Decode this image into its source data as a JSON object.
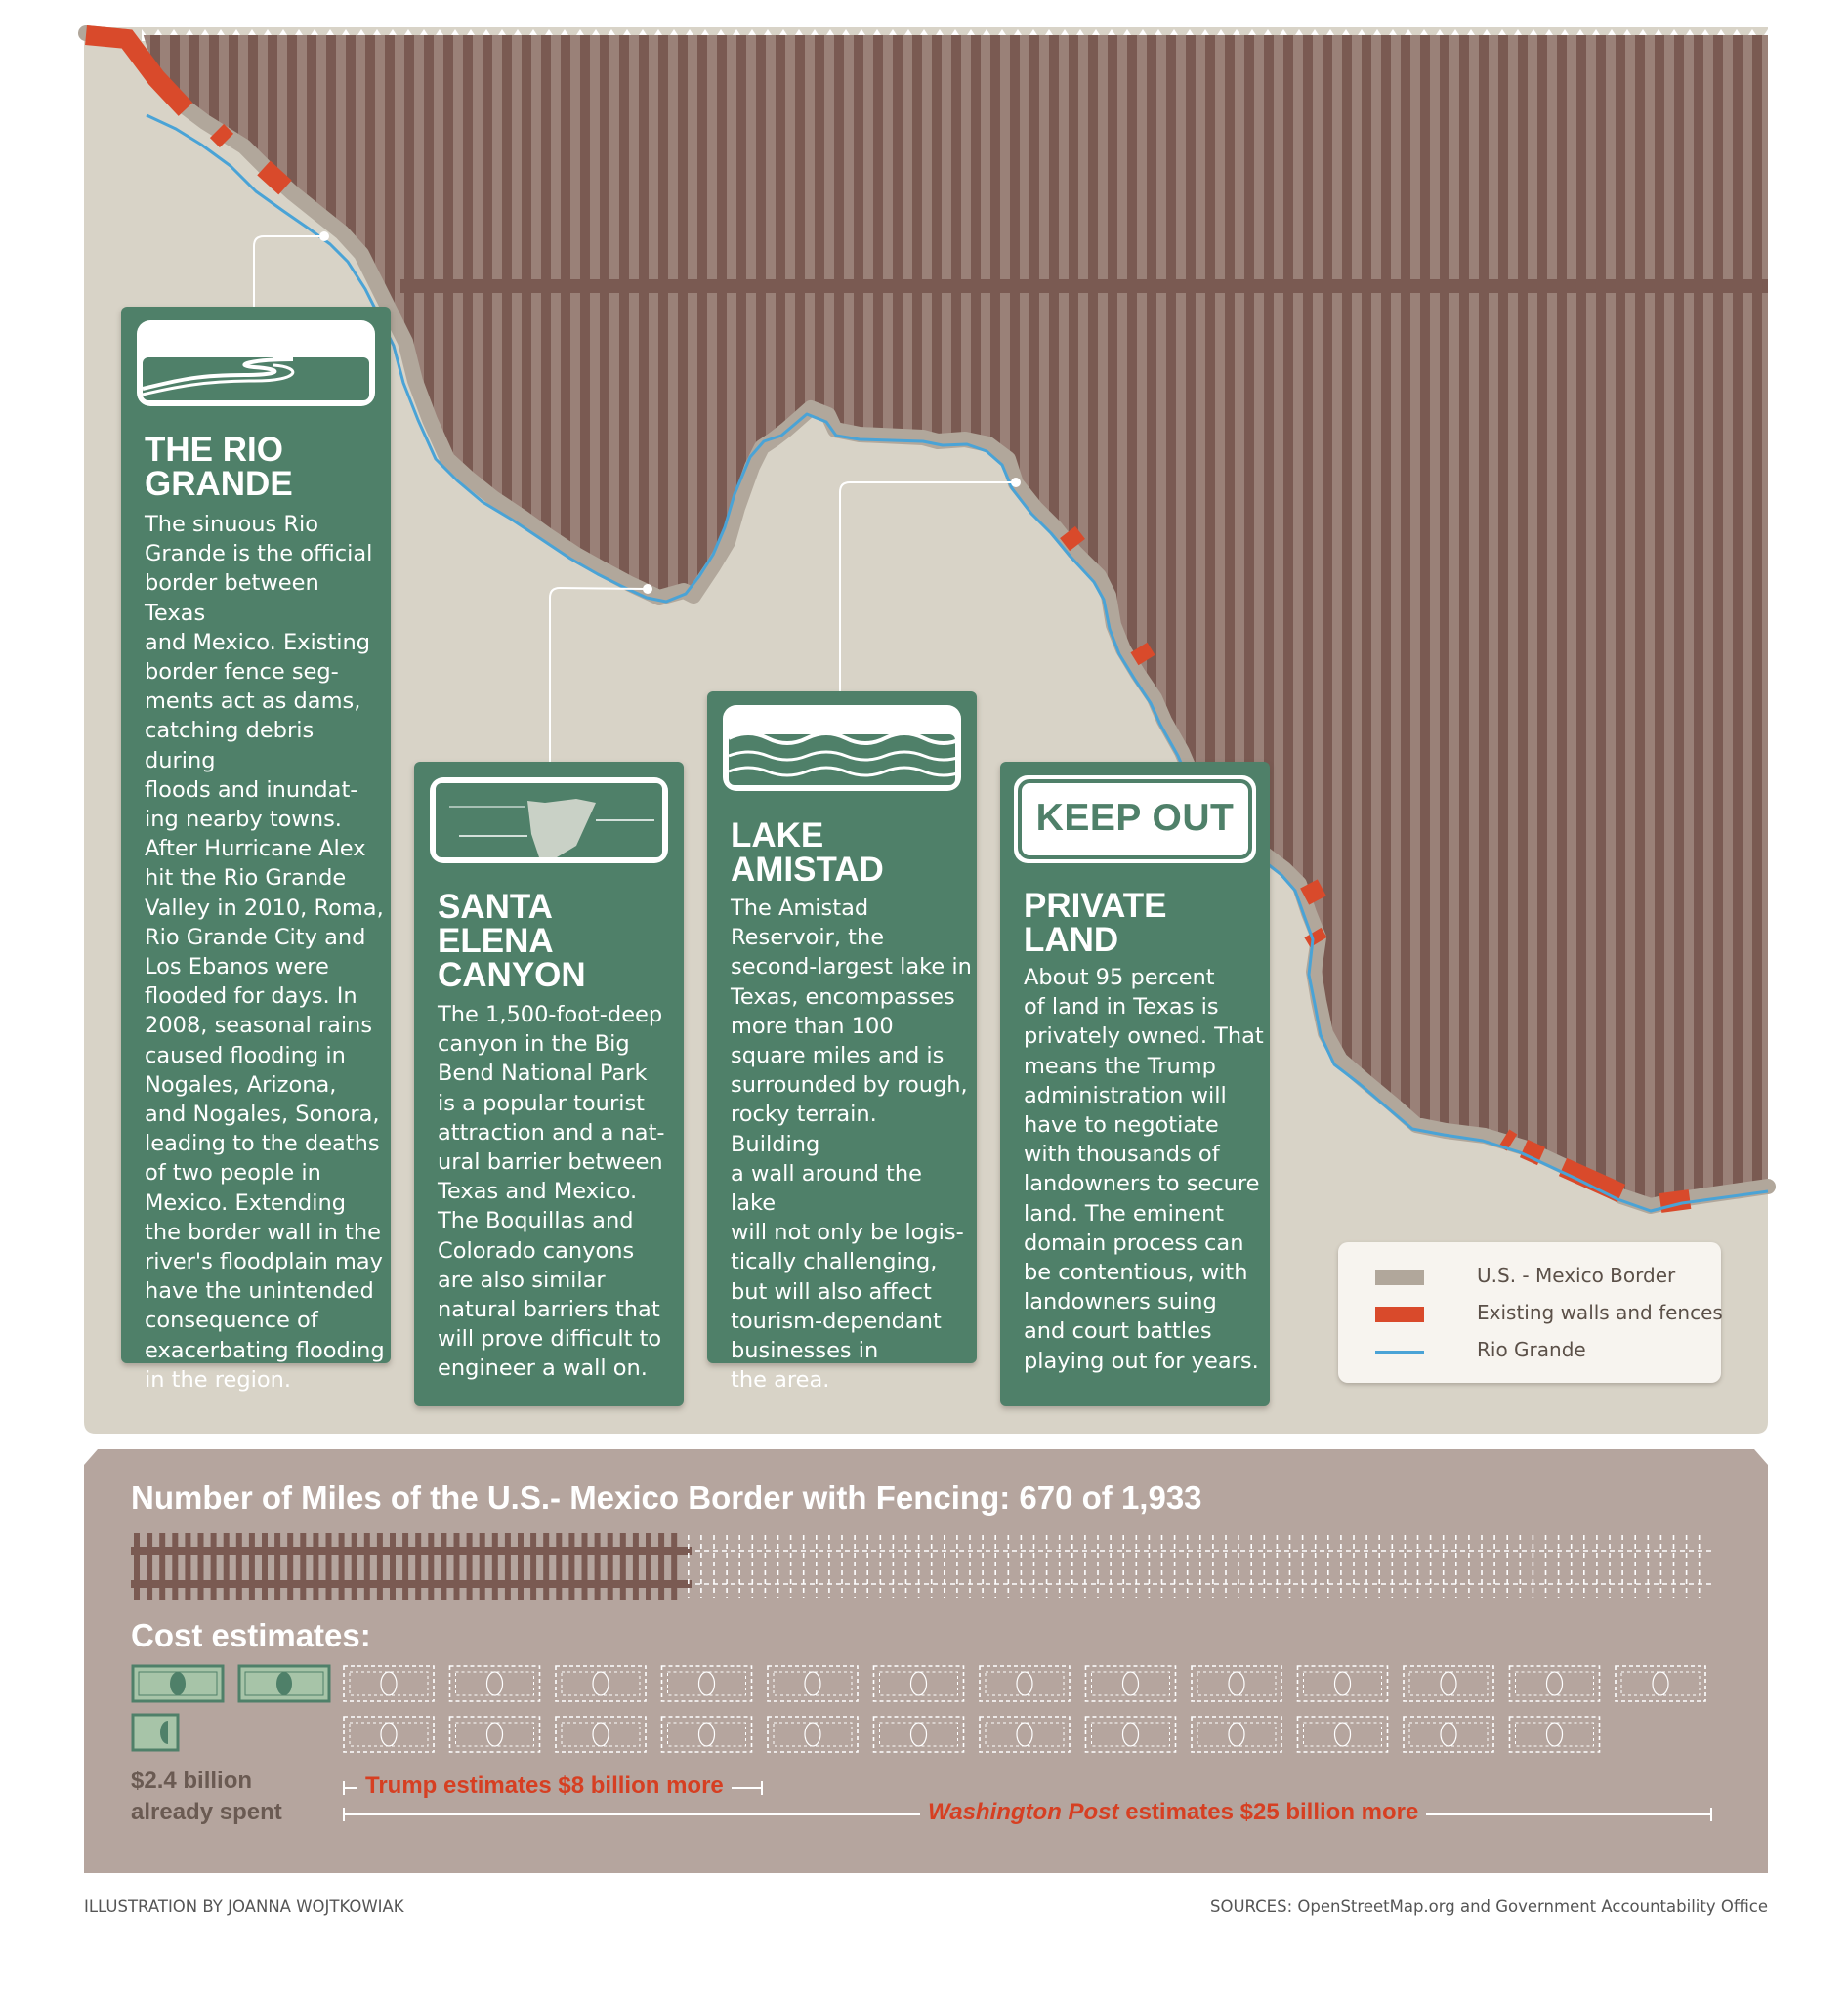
{
  "cards": [
    {
      "title": "THE RIO\nGRANDE",
      "body": "The sinuous Rio\nGrande is the official\nborder between Texas\nand Mexico. Existing\nborder fence seg-\nments act as dams,\ncatching debris during\nfloods and inundat-\ning nearby towns.\nAfter Hurricane Alex\nhit the Rio Grande\nValley in 2010, Roma,\nRio Grande City and\nLos Ebanos were\nflooded for days. In\n2008, seasonal rains\ncaused flooding in\nNogales, Arizona,\nand Nogales, Sonora,\nleading to the deaths\nof two people in\nMexico. Extending\nthe border wall in the\nriver's floodplain may\nhave the unintended\nconsequence of\nexacerbating flooding\nin the region.",
      "icon": "river-icon"
    },
    {
      "title": "SANTA\nELENA\nCANYON",
      "body": "The 1,500-foot-deep\ncanyon in the Big\nBend National Park\nis a popular tourist\nattraction and a nat-\nural barrier between\nTexas and Mexico.\nThe Boquillas and\nColorado canyons\nare also similar\nnatural barriers that\nwill prove difficult to\nengineer a wall on.",
      "icon": "canyon-icon"
    },
    {
      "title": "LAKE\nAMISTAD",
      "body": "The Amistad\nReservoir, the\nsecond-largest lake in\nTexas, encompasses\nmore than 100\nsquare miles and is\nsurrounded by rough,\nrocky terrain. Building\na wall around the lake\nwill not only be logis-\ntically challenging,\nbut will also affect\ntourism-dependant\nbusinesses in\nthe area.",
      "icon": "waves-icon"
    },
    {
      "title": "PRIVATE\nLAND",
      "sign": "KEEP OUT",
      "body": "About 95 percent\nof land in Texas is\nprivately owned. That\nmeans the Trump\nadministration will\nhave to negotiate\nwith thousands of\nlandowners to secure\nland. The eminent\ndomain process can\nbe contentious, with\nlandowners suing\nand court battles\nplaying out for years.",
      "icon": "keep-out-sign-icon"
    }
  ],
  "legend": [
    {
      "label": "U.S. - Mexico Border",
      "color": "#b1a79b"
    },
    {
      "label": "Existing walls and fences",
      "color": "#d94a2b"
    },
    {
      "label": "Rio Grande",
      "color": "#4aa3d6"
    }
  ],
  "fencing": {
    "title": "Number of Miles of the U.S.- Mexico Border with Fencing: 670 of 1,933",
    "fenced_miles": 670,
    "total_miles": 1933
  },
  "costs": {
    "title": "Cost estimates:",
    "spent_label": "$2.4 billion\nalready spent",
    "trump_label": "Trump estimates $8 billion more",
    "wapo_publication": "Washington Post",
    "wapo_rest": " estimates $25 billion more"
  },
  "footer": {
    "credit": "ILLUSTRATION BY JOANNA WOJTKOWIAK",
    "sources": "SOURCES: OpenStreetMap.org and Government Accountability Office"
  },
  "colors": {
    "card_green": "#4f8069",
    "land": "#d8d3c7",
    "fence_dark": "#7a5a52",
    "fence_light": "#9a8178",
    "panel": "#b5a59e",
    "wall_red": "#d94a2b",
    "river_blue": "#4aa3d6"
  }
}
